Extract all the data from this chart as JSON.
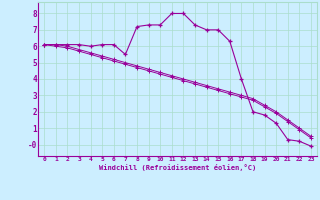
{
  "xlabel": "Windchill (Refroidissement éolien,°C)",
  "background_color": "#cceeff",
  "grid_color": "#aaddcc",
  "line_color": "#990099",
  "xlim": [
    -0.5,
    23.5
  ],
  "ylim": [
    -0.7,
    8.7
  ],
  "xticks": [
    0,
    1,
    2,
    3,
    4,
    5,
    6,
    7,
    8,
    9,
    10,
    11,
    12,
    13,
    14,
    15,
    16,
    17,
    18,
    19,
    20,
    21,
    22,
    23
  ],
  "yticks": [
    0,
    1,
    2,
    3,
    4,
    5,
    6,
    7,
    8
  ],
  "ytick_labels": [
    "-0",
    "1",
    "2",
    "3",
    "4",
    "5",
    "6",
    "7",
    "8"
  ],
  "series": [
    [
      6.1,
      6.1,
      6.1,
      6.1,
      6.0,
      6.1,
      6.1,
      5.5,
      7.2,
      7.3,
      7.3,
      8.0,
      8.0,
      7.3,
      7.0,
      7.0,
      6.3,
      4.0,
      2.0,
      1.8,
      1.3,
      0.3,
      0.2,
      -0.1
    ],
    [
      6.1,
      6.1,
      6.0,
      5.8,
      5.6,
      5.4,
      5.2,
      5.0,
      4.8,
      4.6,
      4.4,
      4.2,
      4.0,
      3.8,
      3.6,
      3.4,
      3.2,
      3.0,
      2.8,
      2.4,
      2.0,
      1.5,
      1.0,
      0.5
    ],
    [
      6.1,
      6.0,
      5.9,
      5.7,
      5.5,
      5.3,
      5.1,
      4.9,
      4.7,
      4.5,
      4.3,
      4.1,
      3.9,
      3.7,
      3.5,
      3.3,
      3.1,
      2.9,
      2.7,
      2.3,
      1.9,
      1.4,
      0.9,
      0.4
    ]
  ]
}
